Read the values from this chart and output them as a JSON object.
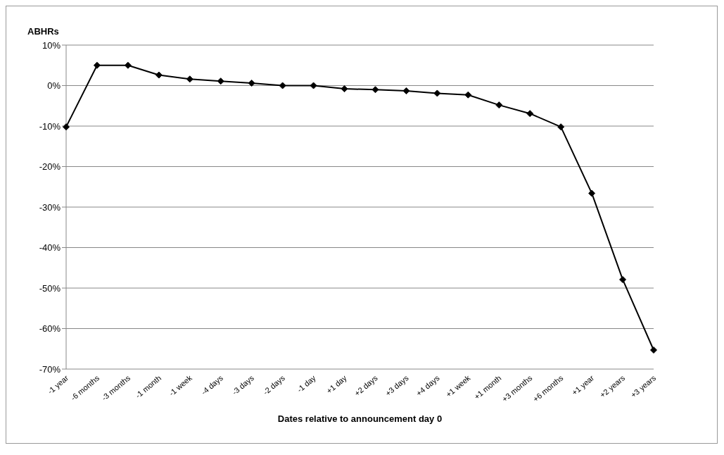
{
  "chart_data": {
    "type": "line",
    "ylabel": "ABHRs",
    "xlabel": "Dates relative to announcement day 0",
    "categories": [
      "-1 year",
      "-6 months",
      "-3 months",
      "-1 month",
      "-1 week",
      "-4 days",
      "-3 days",
      "-2 days",
      "-1 day",
      "+1 day",
      "+2 days",
      "+3 days",
      "+4 days",
      "+1 week",
      "+1 month",
      "+3 months",
      "+6 months",
      "+1 year",
      "+2 years",
      "+3 years"
    ],
    "series": [
      {
        "color": "#000000",
        "values": [
          -10.2,
          5.0,
          5.0,
          2.6,
          1.6,
          1.1,
          0.6,
          0.0,
          0.0,
          -0.8,
          -1.0,
          -1.3,
          -1.9,
          -2.3,
          -4.8,
          -6.9,
          -10.2,
          -26.6,
          -47.9,
          -65.3
        ]
      }
    ],
    "ylim": [
      -70,
      10
    ],
    "yticks": [
      {
        "value": -70,
        "label": "-70%"
      },
      {
        "value": -60,
        "label": "-60%"
      },
      {
        "value": -50,
        "label": "-50%"
      },
      {
        "value": -40,
        "label": "-40%"
      },
      {
        "value": -30,
        "label": "-30%"
      },
      {
        "value": -20,
        "label": "-20%"
      },
      {
        "value": -10,
        "label": "-10%"
      },
      {
        "value": 0,
        "label": "0%"
      },
      {
        "value": 10,
        "label": "10%"
      }
    ],
    "grid": "y",
    "legend": false,
    "marker": "diamond",
    "line_style": "solid"
  }
}
